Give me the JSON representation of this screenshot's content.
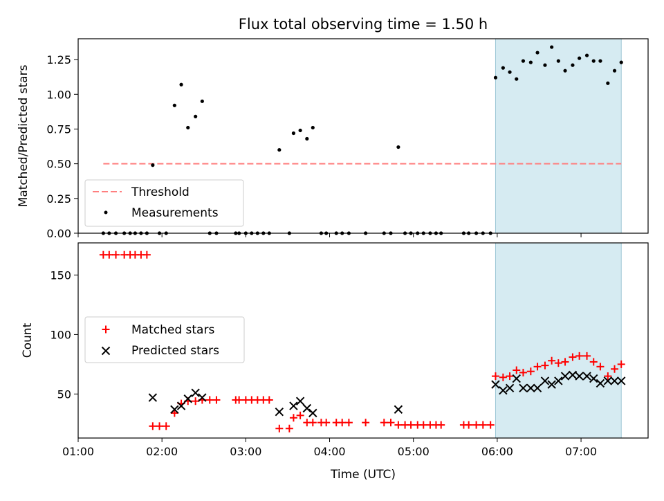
{
  "chart_data": [
    {
      "type": "scatter",
      "title": "Flux total observing time = 1.50 h",
      "xlabel": "",
      "ylabel": "Matched/Predicted stars",
      "xlim": [
        1.0,
        7.8
      ],
      "ylim": [
        0,
        1.4
      ],
      "yticks": [
        0,
        0.25,
        0.5,
        0.75,
        1.0,
        1.25
      ],
      "ytick_labels": [
        "0.00",
        "0.25",
        "0.50",
        "0.75",
        "1.00",
        "1.25"
      ],
      "highlight_span": [
        5.98,
        7.48
      ],
      "highlight_color": "#add8e6",
      "threshold": {
        "name": "Threshold",
        "value": 0.5,
        "x": [
          1.3,
          7.48
        ],
        "color": "#ff7f7f"
      },
      "series": [
        {
          "name": "Measurements",
          "color": "#000000",
          "marker": "dot",
          "x": [
            1.3,
            1.37,
            1.45,
            1.55,
            1.62,
            1.68,
            1.75,
            1.82,
            1.89,
            1.97,
            2.05,
            2.15,
            2.23,
            2.31,
            2.4,
            2.48,
            2.57,
            2.65,
            2.88,
            2.92,
            3.0,
            3.07,
            3.14,
            3.21,
            3.28,
            3.4,
            3.52,
            3.57,
            3.65,
            3.73,
            3.8,
            3.9,
            3.96,
            4.08,
            4.15,
            4.23,
            4.43,
            4.65,
            4.73,
            4.82,
            4.9,
            4.97,
            5.05,
            5.12,
            5.2,
            5.27,
            5.33,
            5.6,
            5.66,
            5.75,
            5.83,
            5.92,
            5.98,
            6.07,
            6.15,
            6.23,
            6.31,
            6.4,
            6.48,
            6.57,
            6.65,
            6.73,
            6.81,
            6.9,
            6.98,
            7.07,
            7.15,
            7.23,
            7.32,
            7.4,
            7.48
          ],
          "y": [
            0,
            0,
            0,
            0,
            0,
            0,
            0,
            0,
            0.49,
            0,
            0,
            0.92,
            1.07,
            0.76,
            0.84,
            0.95,
            0,
            0,
            0,
            0,
            0,
            0,
            0,
            0,
            0,
            0.6,
            0,
            0.72,
            0.74,
            0.68,
            0.76,
            0,
            0,
            0,
            0,
            0,
            0,
            0,
            0,
            0.62,
            0,
            0,
            0,
            0,
            0,
            0,
            0,
            0,
            0,
            0,
            0,
            0,
            1.12,
            1.19,
            1.16,
            1.11,
            1.24,
            1.23,
            1.3,
            1.21,
            1.34,
            1.24,
            1.17,
            1.21,
            1.26,
            1.28,
            1.24,
            1.24,
            1.08,
            1.17,
            1.23
          ]
        }
      ],
      "legend": {
        "location": "lower-left",
        "entries": [
          "Threshold",
          "Measurements"
        ]
      }
    },
    {
      "type": "scatter",
      "title": "",
      "xlabel": "Time (UTC)",
      "ylabel": "Count",
      "xlim": [
        1.0,
        7.8
      ],
      "ylim": [
        13,
        177
      ],
      "yticks": [
        50,
        100,
        150
      ],
      "ytick_labels": [
        "50",
        "100",
        "150"
      ],
      "xticks": [
        1,
        2,
        3,
        4,
        5,
        6,
        7
      ],
      "xtick_labels": [
        "01:00",
        "02:00",
        "03:00",
        "04:00",
        "05:00",
        "06:00",
        "07:00"
      ],
      "highlight_span": [
        5.98,
        7.48
      ],
      "highlight_color": "#add8e6",
      "series": [
        {
          "name": "Matched stars",
          "color": "#ff0000",
          "marker": "plus",
          "x": [
            1.3,
            1.37,
            1.45,
            1.55,
            1.62,
            1.68,
            1.75,
            1.82,
            1.89,
            1.97,
            2.05,
            2.15,
            2.23,
            2.31,
            2.4,
            2.48,
            2.57,
            2.65,
            2.88,
            2.92,
            3.0,
            3.07,
            3.14,
            3.21,
            3.28,
            3.4,
            3.52,
            3.57,
            3.65,
            3.73,
            3.8,
            3.9,
            3.96,
            4.08,
            4.15,
            4.23,
            4.43,
            4.65,
            4.73,
            4.82,
            4.9,
            4.97,
            5.05,
            5.12,
            5.2,
            5.27,
            5.33,
            5.6,
            5.66,
            5.75,
            5.83,
            5.92,
            5.98,
            6.07,
            6.15,
            6.23,
            6.31,
            6.4,
            6.48,
            6.57,
            6.65,
            6.73,
            6.81,
            6.9,
            6.98,
            7.07,
            7.15,
            7.23,
            7.32,
            7.4,
            7.48
          ],
          "y": [
            167,
            167,
            167,
            167,
            167,
            167,
            167,
            167,
            23,
            23,
            23,
            34,
            42,
            44,
            44,
            45,
            45,
            45,
            45,
            45,
            45,
            45,
            45,
            45,
            45,
            21,
            21,
            30,
            32,
            26,
            26,
            26,
            26,
            26,
            26,
            26,
            26,
            26,
            26,
            24,
            24,
            24,
            24,
            24,
            24,
            24,
            24,
            24,
            24,
            24,
            24,
            24,
            65,
            64,
            65,
            70,
            68,
            69,
            73,
            74,
            78,
            76,
            77,
            81,
            82,
            82,
            77,
            73,
            65,
            71,
            75
          ]
        },
        {
          "name": "Predicted stars",
          "color": "#000000",
          "marker": "x",
          "x": [
            1.89,
            2.15,
            2.23,
            2.31,
            2.4,
            2.48,
            3.4,
            3.57,
            3.65,
            3.73,
            3.8,
            4.82,
            5.98,
            6.07,
            6.15,
            6.23,
            6.31,
            6.4,
            6.48,
            6.57,
            6.65,
            6.73,
            6.81,
            6.9,
            6.98,
            7.07,
            7.15,
            7.23,
            7.32,
            7.4,
            7.48
          ],
          "y": [
            47,
            37,
            40,
            46,
            51,
            47,
            35,
            40,
            44,
            38,
            34,
            37,
            58,
            53,
            55,
            63,
            55,
            55,
            55,
            61,
            58,
            61,
            65,
            66,
            65,
            65,
            63,
            59,
            61,
            61,
            61
          ]
        }
      ],
      "legend": {
        "location": "center-left",
        "entries": [
          "Matched stars",
          "Predicted stars"
        ]
      }
    }
  ]
}
